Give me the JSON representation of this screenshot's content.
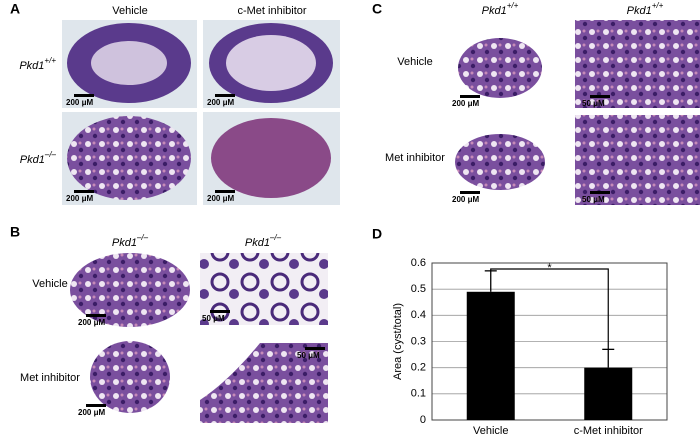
{
  "panels": {
    "A": {
      "label": "A",
      "columns": [
        "Vehicle",
        "c-Met inhibitor"
      ],
      "rows": [
        {
          "gene": "Pkd1",
          "genotype": "+/+"
        },
        {
          "gene": "Pkd1",
          "genotype": "–/–"
        }
      ],
      "scale_bars": [
        "200 μM",
        "200 μM",
        "200 μM",
        "200 μM"
      ]
    },
    "B": {
      "label": "B",
      "columns": [
        {
          "gene": "Pkd1",
          "genotype": "–/–"
        },
        {
          "gene": "Pkd1",
          "genotype": "–/–"
        }
      ],
      "rows": [
        "Vehicle",
        "Met inhibitor"
      ],
      "scale_bars": [
        "200 μM",
        "50 μM",
        "200 μM",
        "50 μM"
      ]
    },
    "C": {
      "label": "C",
      "columns": [
        {
          "gene": "Pkd1",
          "genotype": "+/+"
        },
        {
          "gene": "Pkd1",
          "genotype": "+/+"
        }
      ],
      "rows": [
        "Vehicle",
        "Met inhibitor"
      ],
      "scale_bars": [
        "200 μM",
        "50 μM",
        "200 μM",
        "50 μM"
      ]
    }
  },
  "chart_data": {
    "type": "bar",
    "label": "D",
    "y_label": "Area (cyst/total)",
    "categories": [
      "Vehicle",
      "c-Met inhibitor"
    ],
    "values": [
      0.49,
      0.2
    ],
    "errors": [
      0.08,
      0.07
    ],
    "color": "#000000",
    "ylim": [
      0,
      0.6
    ],
    "yticks": [
      0,
      0.1,
      0.2,
      0.3,
      0.4,
      0.5,
      0.6
    ],
    "grid": true,
    "significance": "*"
  }
}
